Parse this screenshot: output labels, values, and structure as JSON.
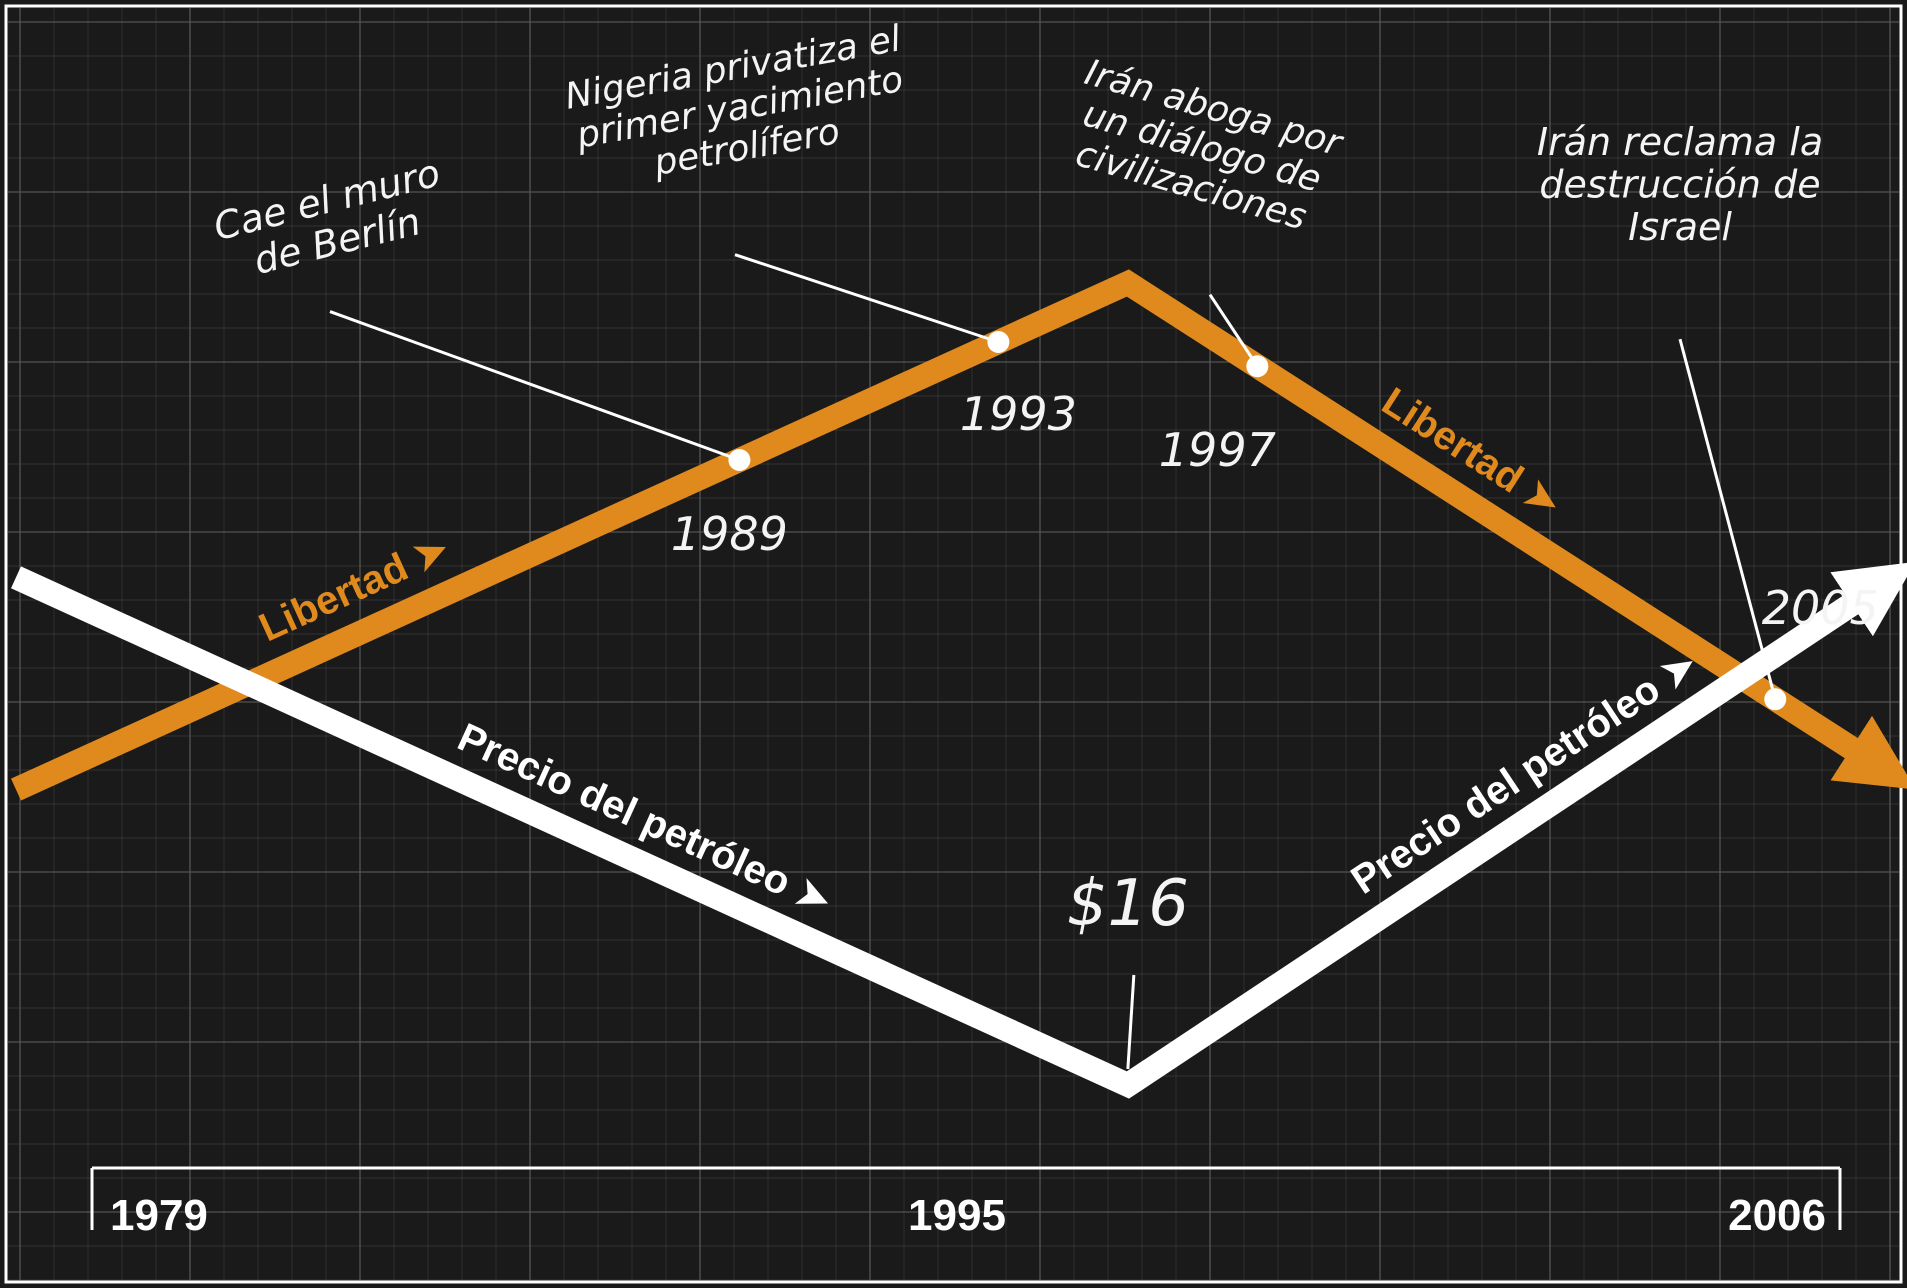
{
  "chart_data": {
    "type": "line",
    "x_axis": {
      "tick_labels": [
        "1979",
        "1995",
        "2006"
      ],
      "range": [
        1979,
        2006
      ]
    },
    "colors": {
      "background": "#1a1a1a",
      "grid": "#5a5a5a",
      "libertad": "#e08a1e",
      "precio": "#ffffff"
    },
    "series": [
      {
        "name": "Libertad",
        "color": "#e08a1e",
        "points": [
          {
            "year": 1979,
            "level": 0.0
          },
          {
            "year": 1995,
            "level": 1.0
          },
          {
            "year": 2006,
            "level": 0.03
          }
        ],
        "labels": [
          "Libertad",
          "Libertad"
        ]
      },
      {
        "name": "Precio del petróleo",
        "color": "#ffffff",
        "points": [
          {
            "year": 1979,
            "level": 1.0
          },
          {
            "year": 1995,
            "level": 0.0
          },
          {
            "year": 2006,
            "level": 1.0
          }
        ],
        "labels": [
          "Precio del petróleo",
          "Precio del petróleo"
        ]
      }
    ],
    "annotations": [
      {
        "year_label": "1989",
        "lines": [
          "Cae el muro",
          "de Berlín"
        ]
      },
      {
        "year_label": "1993",
        "lines": [
          "Nigeria privatiza el",
          "primer yacimiento",
          "petrolífero"
        ]
      },
      {
        "year_label": "1997",
        "lines": [
          "Irán aboga por",
          "un diálogo de",
          "civilizaciones"
        ]
      },
      {
        "year_label": "2005",
        "lines": [
          "Irán reclama la",
          "destrucción de",
          "Israel"
        ]
      }
    ],
    "price_annotation": "$16"
  }
}
